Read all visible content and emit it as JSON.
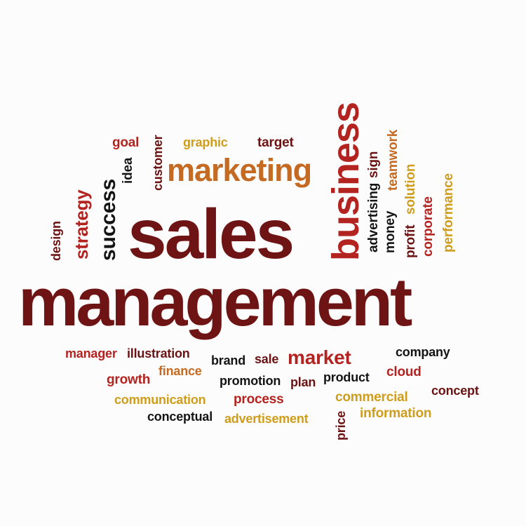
{
  "colors": {
    "dark_red": "#6b1212",
    "red": "#b3231f",
    "gold": "#cf9d1c",
    "orange": "#c46a22",
    "black": "#141414",
    "background": "#fdfcfc"
  },
  "words": {
    "sales": "sales",
    "management": "management",
    "marketing": "marketing",
    "business": "business",
    "success": "success",
    "strategy": "strategy",
    "design": "design",
    "idea": "idea",
    "customer": "customer",
    "goal": "goal",
    "graphic": "graphic",
    "target": "target",
    "advertising": "advertising",
    "money": "money",
    "sign": "sign",
    "teamwork": "teamwork",
    "solution": "solution",
    "profit": "profit",
    "corporate": "corporate",
    "performance": "performance",
    "manager": "manager",
    "illustration": "illustration",
    "brand": "brand",
    "sale": "sale",
    "market": "market",
    "company": "company",
    "growth": "growth",
    "finance": "finance",
    "promotion": "promotion",
    "plan": "plan",
    "product": "product",
    "cloud": "cloud",
    "concept": "concept",
    "communication": "communication",
    "process": "process",
    "commercial": "commercial",
    "conceptual": "conceptual",
    "advertisement": "advertisement",
    "price": "price",
    "information": "information"
  }
}
